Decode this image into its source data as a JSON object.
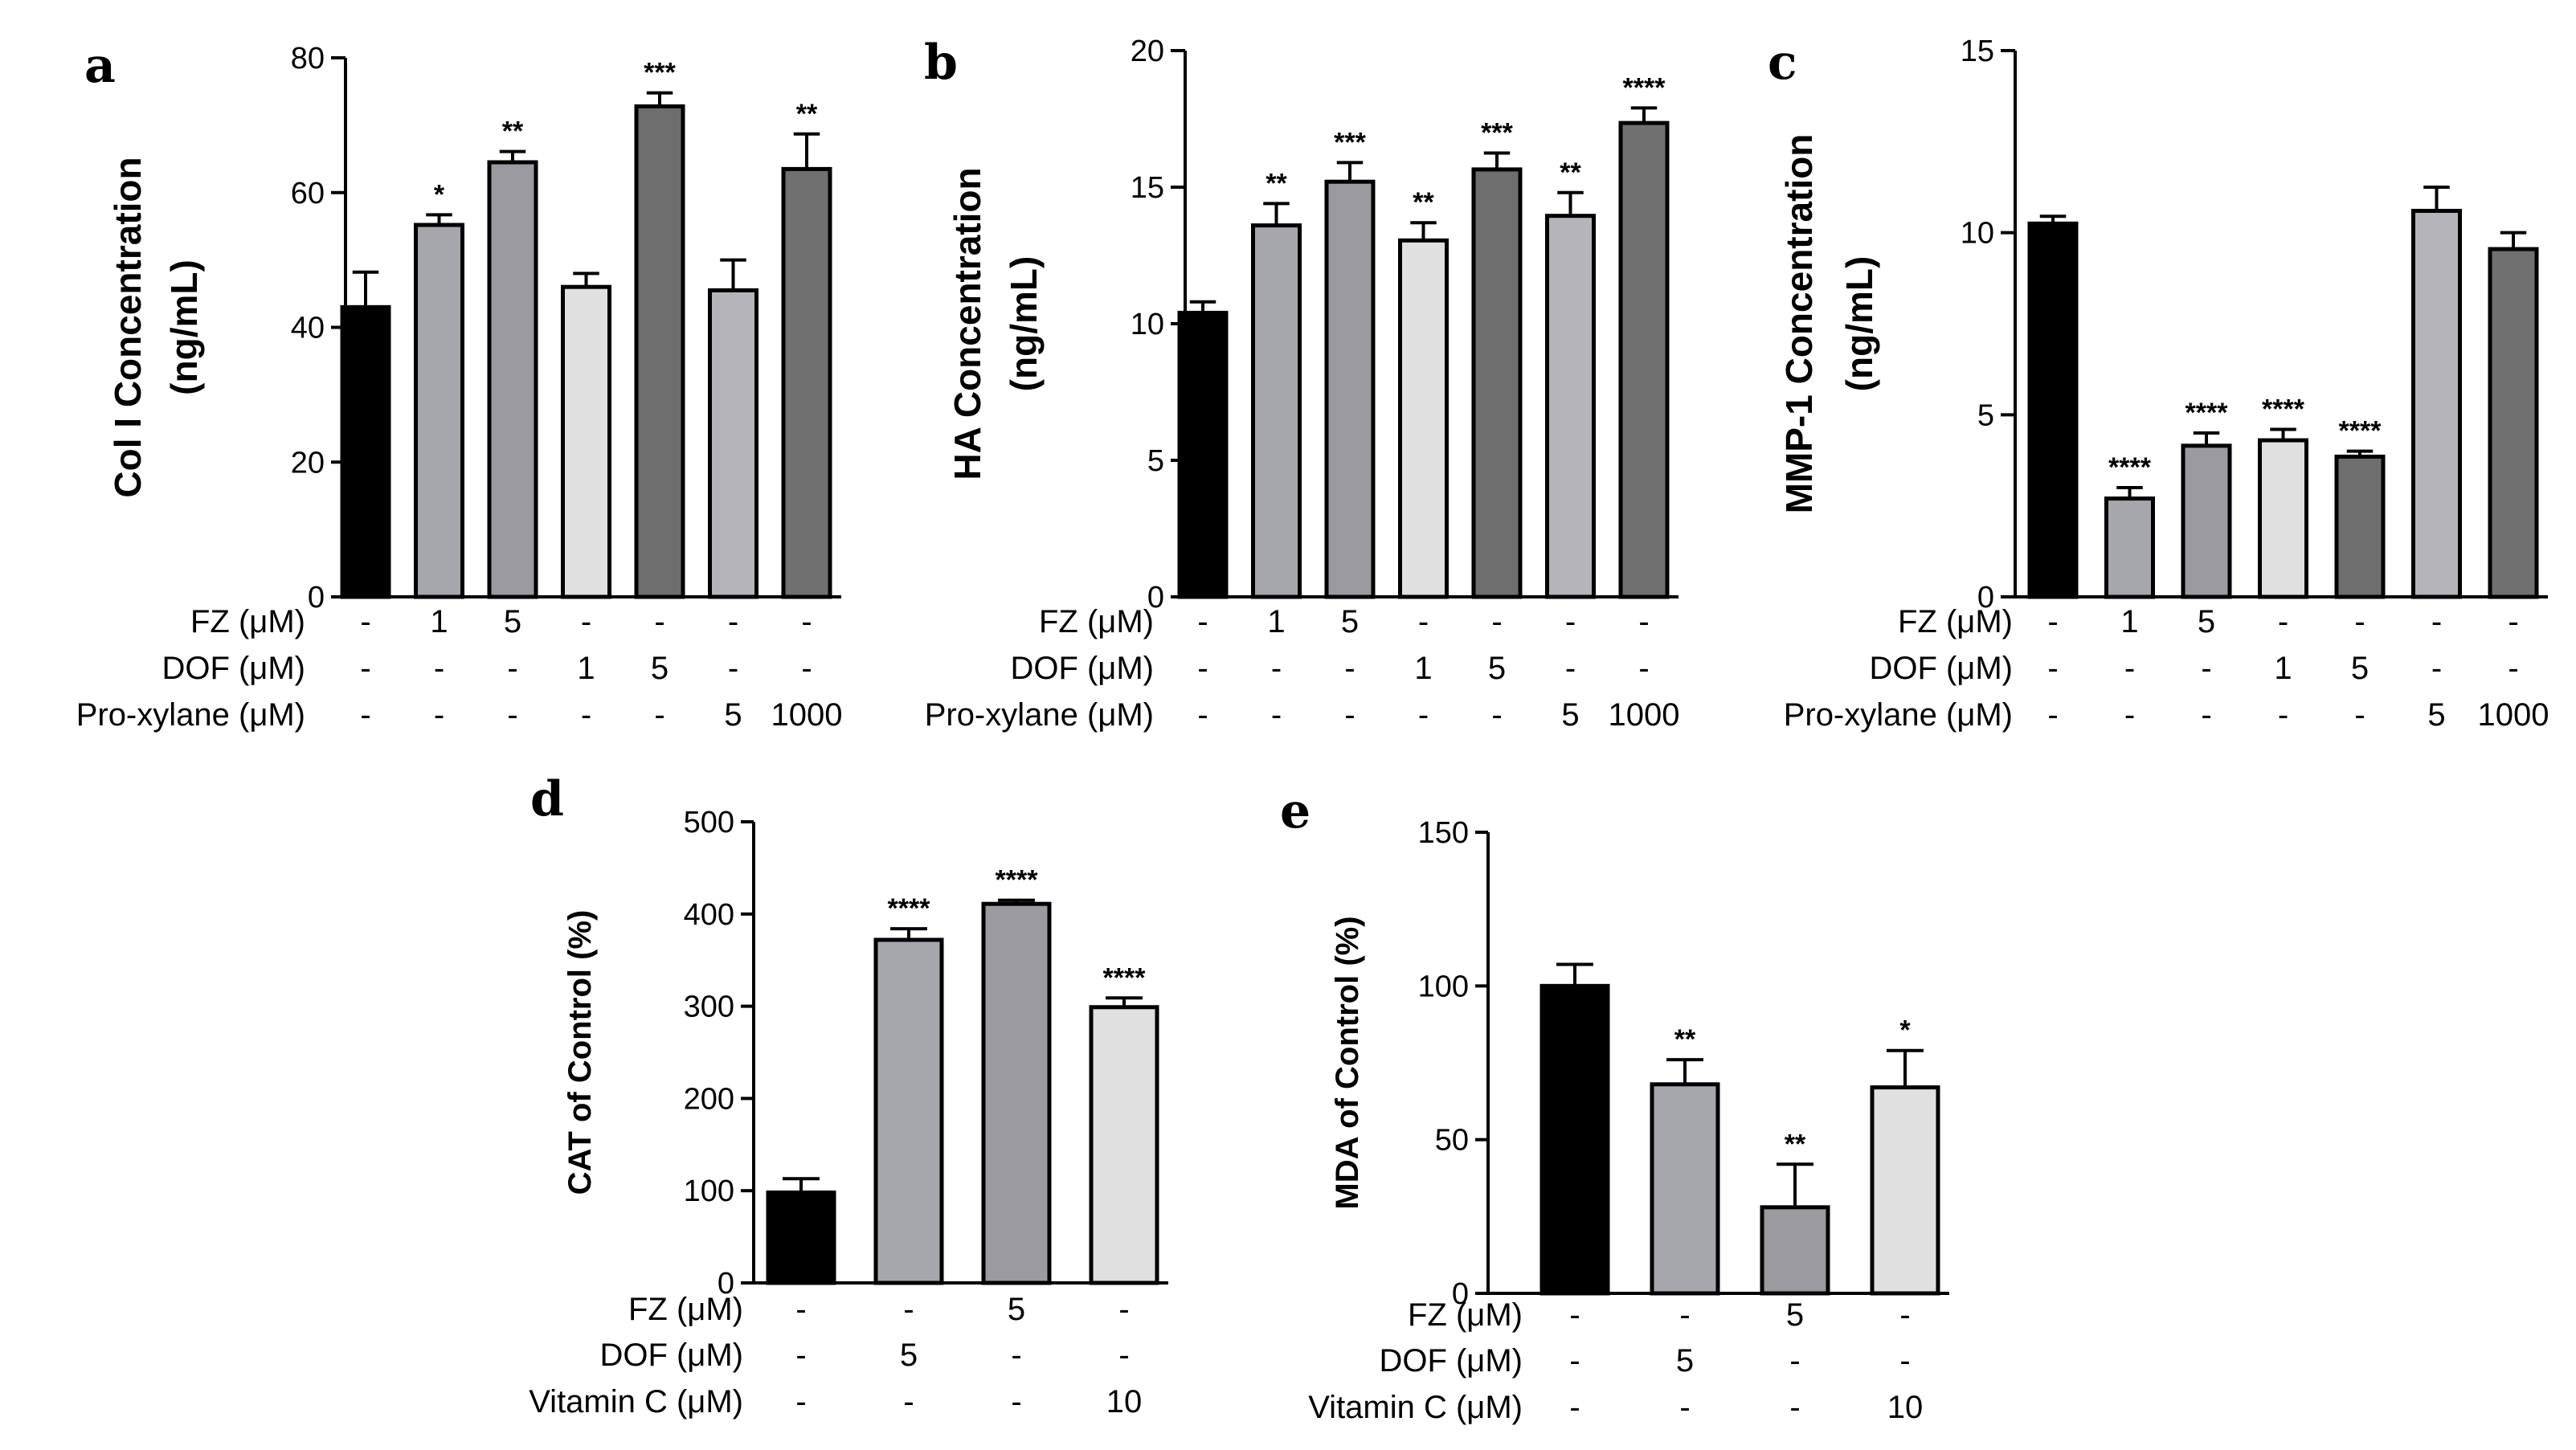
{
  "chart_data": [
    {
      "panel": "a",
      "type": "bar",
      "ylabel": [
        "Col I Concentration",
        "(ng/mL)"
      ],
      "ylim": [
        0,
        80
      ],
      "yticks": [
        0,
        20,
        40,
        60,
        80
      ],
      "bars": [
        {
          "value": 43,
          "err": 5.2,
          "sig": "",
          "color": "#000000"
        },
        {
          "value": 55.2,
          "err": 1.5,
          "sig": "*",
          "color": "#a6a6ad"
        },
        {
          "value": 64.5,
          "err": 1.6,
          "sig": "**",
          "color": "#9a9a9f"
        },
        {
          "value": 46,
          "err": 2.0,
          "sig": "",
          "color": "#e0e0e0"
        },
        {
          "value": 72.8,
          "err": 2.0,
          "sig": "***",
          "color": "#6e6e6e"
        },
        {
          "value": 45.5,
          "err": 4.5,
          "sig": "",
          "color": "#b5b5b9"
        },
        {
          "value": 63.5,
          "err": 5.2,
          "sig": "**",
          "color": "#707070"
        }
      ],
      "conditions": [
        {
          "label": "FZ (μM)",
          "cells": [
            "-",
            "1",
            "5",
            "-",
            "-",
            "-",
            "-"
          ]
        },
        {
          "label": "DOF (μM)",
          "cells": [
            "-",
            "-",
            "-",
            "1",
            "5",
            "-",
            "-"
          ]
        },
        {
          "label": "Pro-xylane (μM)",
          "cells": [
            "-",
            "-",
            "-",
            "-",
            "-",
            "5",
            "1000"
          ]
        }
      ]
    },
    {
      "panel": "b",
      "type": "bar",
      "ylabel": [
        "HA Concentration",
        "(ng/mL)"
      ],
      "ylim": [
        0,
        20
      ],
      "yticks": [
        0,
        5,
        10,
        15,
        20
      ],
      "bars": [
        {
          "value": 10.4,
          "err": 0.4,
          "sig": "",
          "color": "#000000"
        },
        {
          "value": 13.6,
          "err": 0.8,
          "sig": "**",
          "color": "#a6a6ad"
        },
        {
          "value": 15.2,
          "err": 0.7,
          "sig": "***",
          "color": "#9a9a9f"
        },
        {
          "value": 13.05,
          "err": 0.65,
          "sig": "**",
          "color": "#e0e0e0"
        },
        {
          "value": 15.65,
          "err": 0.6,
          "sig": "***",
          "color": "#6e6e6e"
        },
        {
          "value": 13.95,
          "err": 0.85,
          "sig": "**",
          "color": "#b5b5b9"
        },
        {
          "value": 17.35,
          "err": 0.55,
          "sig": "****",
          "color": "#707070"
        }
      ],
      "conditions": [
        {
          "label": "FZ (μM)",
          "cells": [
            "-",
            "1",
            "5",
            "-",
            "-",
            "-",
            "-"
          ]
        },
        {
          "label": "DOF (μM)",
          "cells": [
            "-",
            "-",
            "-",
            "1",
            "5",
            "-",
            "-"
          ]
        },
        {
          "label": "Pro-xylane (μM)",
          "cells": [
            "-",
            "-",
            "-",
            "-",
            "-",
            "5",
            "1000"
          ]
        }
      ]
    },
    {
      "panel": "c",
      "type": "bar",
      "ylabel": [
        "MMP-1 Concentration",
        "(ng/mL)"
      ],
      "ylim": [
        0,
        15
      ],
      "yticks": [
        0,
        5,
        10,
        15
      ],
      "bars": [
        {
          "value": 10.25,
          "err": 0.2,
          "sig": "",
          "color": "#000000"
        },
        {
          "value": 2.7,
          "err": 0.3,
          "sig": "****",
          "color": "#a6a6ad"
        },
        {
          "value": 4.15,
          "err": 0.35,
          "sig": "****",
          "color": "#9a9a9f"
        },
        {
          "value": 4.3,
          "err": 0.3,
          "sig": "****",
          "color": "#e0e0e0"
        },
        {
          "value": 3.85,
          "err": 0.15,
          "sig": "****",
          "color": "#6e6e6e"
        },
        {
          "value": 10.6,
          "err": 0.65,
          "sig": "",
          "color": "#b5b5b9"
        },
        {
          "value": 9.55,
          "err": 0.45,
          "sig": "",
          "color": "#707070"
        }
      ],
      "conditions": [
        {
          "label": "FZ (μM)",
          "cells": [
            "-",
            "1",
            "5",
            "-",
            "-",
            "-",
            "-"
          ]
        },
        {
          "label": "DOF (μM)",
          "cells": [
            "-",
            "-",
            "-",
            "1",
            "5",
            "-",
            "-"
          ]
        },
        {
          "label": "Pro-xylane (μM)",
          "cells": [
            "-",
            "-",
            "-",
            "-",
            "-",
            "5",
            "1000"
          ]
        }
      ]
    },
    {
      "panel": "d",
      "type": "bar",
      "ylabel": [
        "CAT of Control (%)"
      ],
      "ylim": [
        0,
        500
      ],
      "yticks": [
        0,
        100,
        200,
        300,
        400,
        500
      ],
      "bars": [
        {
          "value": 98,
          "err": 15,
          "sig": "",
          "color": "#000000"
        },
        {
          "value": 372,
          "err": 12,
          "sig": "****",
          "color": "#a6a6ad"
        },
        {
          "value": 411,
          "err": 4,
          "sig": "****",
          "color": "#9a9a9f"
        },
        {
          "value": 299,
          "err": 10,
          "sig": "****",
          "color": "#e0e0e0"
        }
      ],
      "conditions": [
        {
          "label": "FZ (μM)",
          "cells": [
            "-",
            "-",
            "5",
            "-"
          ]
        },
        {
          "label": "DOF (μM)",
          "cells": [
            "-",
            "5",
            "-",
            "-"
          ]
        },
        {
          "label": "Vitamin C (μM)",
          "cells": [
            "-",
            "-",
            "-",
            "10"
          ]
        }
      ]
    },
    {
      "panel": "e",
      "type": "bar",
      "ylabel": [
        "MDA of Control (%)"
      ],
      "ylim": [
        0,
        150
      ],
      "yticks": [
        0,
        50,
        100,
        150
      ],
      "bars": [
        {
          "value": 100,
          "err": 7,
          "sig": "",
          "color": "#000000"
        },
        {
          "value": 68,
          "err": 8,
          "sig": "**",
          "color": "#a6a6ad"
        },
        {
          "value": 28,
          "err": 14,
          "sig": "**",
          "color": "#9a9a9f"
        },
        {
          "value": 67,
          "err": 12,
          "sig": "*",
          "color": "#e0e0e0"
        }
      ],
      "conditions": [
        {
          "label": "FZ (μM)",
          "cells": [
            "-",
            "-",
            "5",
            "-"
          ]
        },
        {
          "label": "DOF (μM)",
          "cells": [
            "-",
            "5",
            "-",
            "-"
          ]
        },
        {
          "label": "Vitamin C (μM)",
          "cells": [
            "-",
            "-",
            "-",
            "10"
          ]
        }
      ]
    }
  ]
}
